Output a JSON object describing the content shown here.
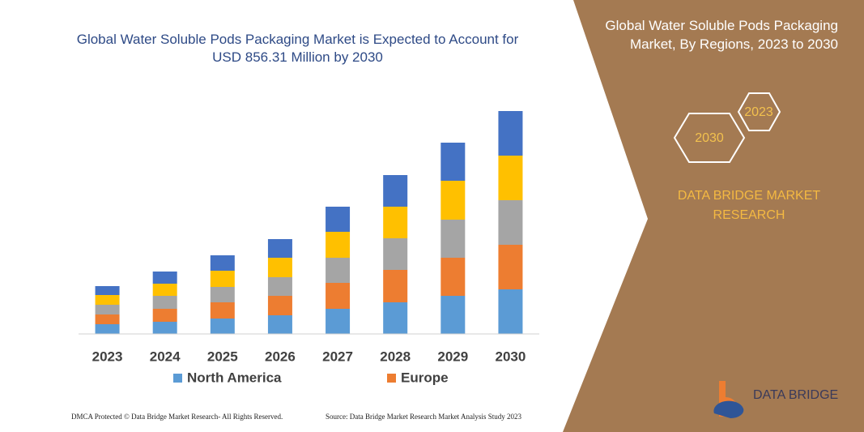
{
  "chart_data": {
    "type": "stacked-bar",
    "title": "Global Water Soluble Pods Packaging Market is Expected to Account for USD 856.31 Million by 2030",
    "categories": [
      "2023",
      "2024",
      "2025",
      "2026",
      "2027",
      "2028",
      "2029",
      "2030"
    ],
    "series": [
      {
        "name": "North America",
        "color": "#5b9bd5",
        "values": [
          12,
          15,
          19,
          23,
          31,
          39,
          47,
          55
        ]
      },
      {
        "name": "Europe",
        "color": "#ed7d31",
        "values": [
          12,
          16,
          20,
          24,
          32,
          40,
          47,
          55
        ]
      },
      {
        "color": "#a5a5a5",
        "values": [
          12,
          16,
          19,
          23,
          31,
          39,
          47,
          55
        ]
      },
      {
        "color": "#ffc000",
        "values": [
          12,
          15,
          20,
          24,
          32,
          39,
          48,
          55
        ]
      },
      {
        "color": "#4472c4",
        "values": [
          11,
          15,
          19,
          23,
          31,
          39,
          47,
          55
        ]
      }
    ],
    "ylim": [
      0,
      300
    ]
  },
  "side_panel": {
    "title": "Global Water Soluble Pods Packaging Market, By Regions, 2023 to 2030",
    "hexagons": [
      "2023",
      "2030"
    ],
    "tagline": "DATA BRIDGE MARKET RESEARCH",
    "brand": "DATA BRIDGE"
  },
  "footer": {
    "copyright": "DMCA Protected © Data Bridge Market Research- All Rights Reserved.",
    "source": "Source: Data Bridge Market Research  Market Analysis Study 2023"
  }
}
